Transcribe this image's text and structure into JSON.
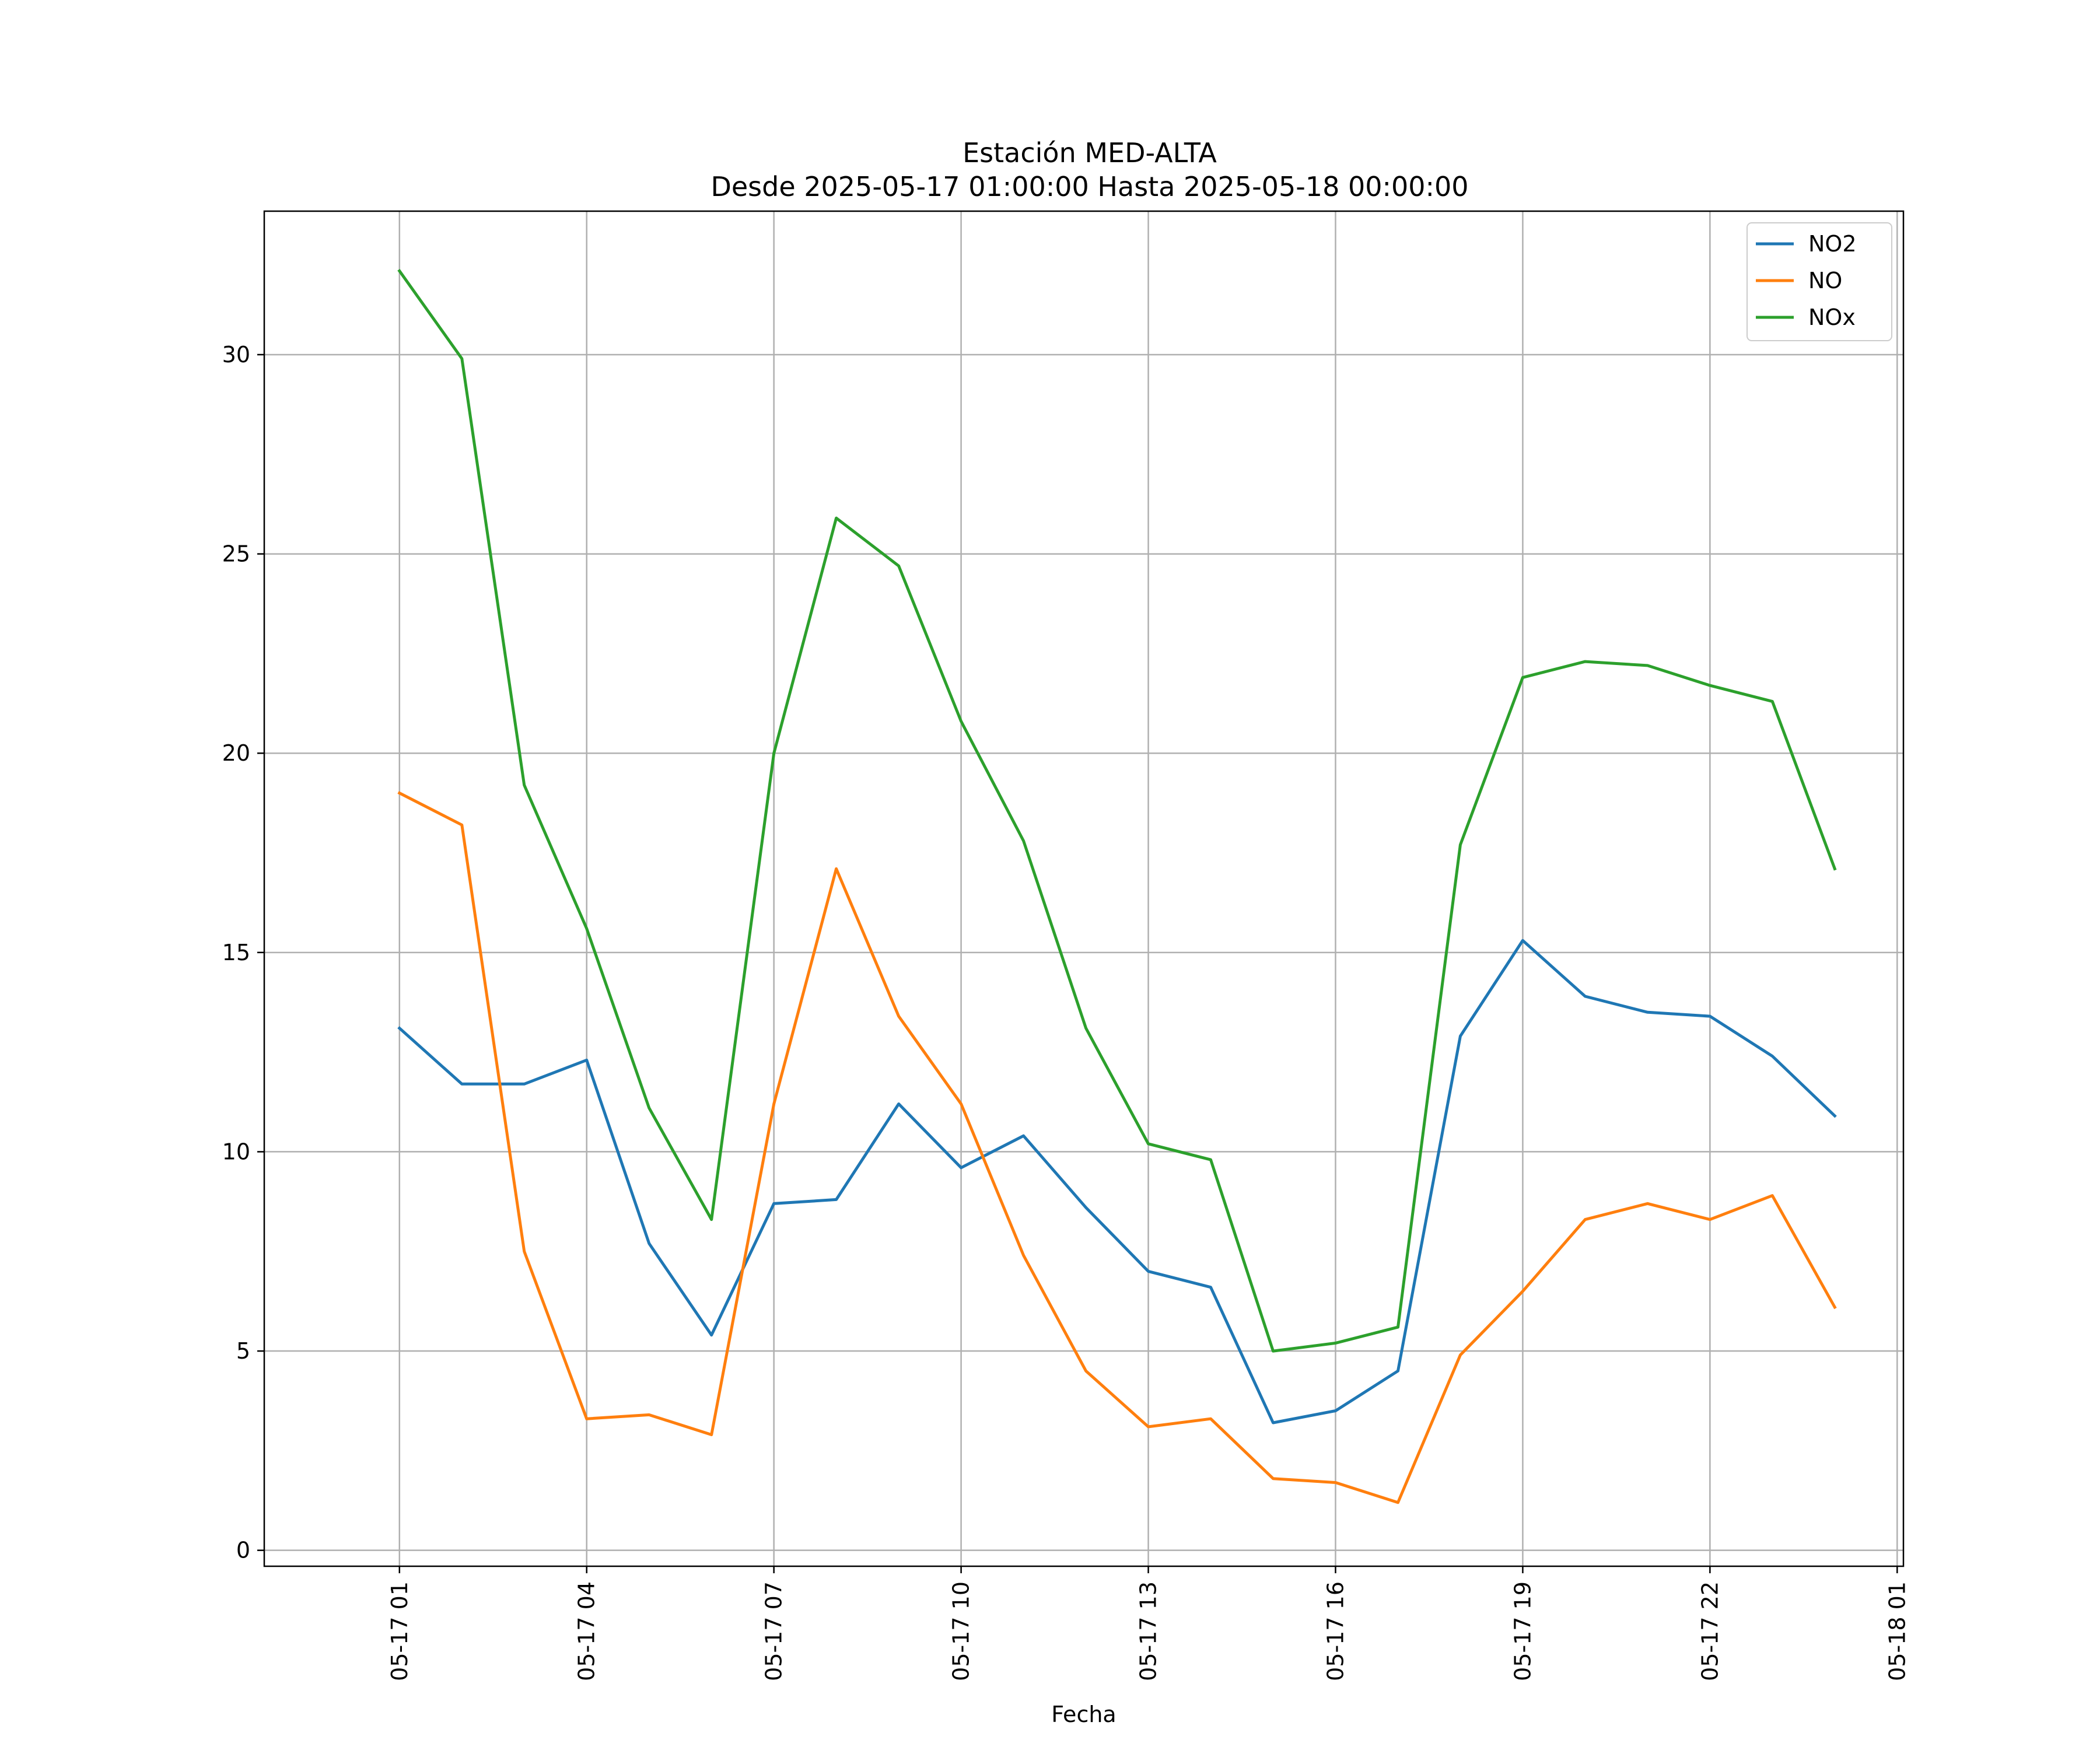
{
  "chart_data": {
    "type": "line",
    "title": "Estación MED-ALTA",
    "subtitle": "Desde 2025-05-17 01:00:00 Hasta 2025-05-18 00:00:00",
    "xlabel": "Fecha",
    "ylabel": "",
    "x": [
      "2025-05-17 01:00",
      "2025-05-17 02:00",
      "2025-05-17 03:00",
      "2025-05-17 04:00",
      "2025-05-17 05:00",
      "2025-05-17 06:00",
      "2025-05-17 07:00",
      "2025-05-17 08:00",
      "2025-05-17 09:00",
      "2025-05-17 10:00",
      "2025-05-17 11:00",
      "2025-05-17 12:00",
      "2025-05-17 13:00",
      "2025-05-17 14:00",
      "2025-05-17 15:00",
      "2025-05-17 16:00",
      "2025-05-17 17:00",
      "2025-05-17 18:00",
      "2025-05-17 19:00",
      "2025-05-17 20:00",
      "2025-05-17 21:00",
      "2025-05-17 22:00",
      "2025-05-17 23:00",
      "2025-05-18 00:00"
    ],
    "xlim": [
      "2025-05-16 22:50",
      "2025-05-18 01:06"
    ],
    "xticks": [
      "05-17 01",
      "05-17 04",
      "05-17 07",
      "05-17 10",
      "05-17 13",
      "05-17 16",
      "05-17 19",
      "05-17 22",
      "05-18 01"
    ],
    "ylim": [
      -0.4,
      33.6
    ],
    "yticks": [
      "0",
      "5",
      "10",
      "15",
      "20",
      "25",
      "30"
    ],
    "grid": true,
    "legend_position": "top-right",
    "series": [
      {
        "name": "NO2",
        "color": "#1f77b4",
        "values": [
          13.1,
          11.7,
          11.7,
          12.3,
          7.7,
          5.4,
          8.7,
          8.8,
          11.2,
          9.6,
          10.4,
          8.6,
          7.0,
          6.6,
          3.2,
          3.5,
          4.5,
          12.9,
          15.3,
          13.9,
          13.5,
          13.4,
          12.4,
          10.9
        ]
      },
      {
        "name": "NO",
        "color": "#ff7f0e",
        "values": [
          19.0,
          18.2,
          7.5,
          3.3,
          3.4,
          2.9,
          11.2,
          17.1,
          13.4,
          11.2,
          7.4,
          4.5,
          3.1,
          3.3,
          1.8,
          1.7,
          1.2,
          4.9,
          6.5,
          8.3,
          8.7,
          8.3,
          8.9,
          6.1
        ]
      },
      {
        "name": "NOx",
        "color": "#2ca02c",
        "values": [
          32.1,
          29.9,
          19.2,
          15.6,
          11.1,
          8.3,
          20.0,
          25.9,
          24.7,
          20.8,
          17.8,
          13.1,
          10.2,
          9.8,
          5.0,
          5.2,
          5.6,
          17.7,
          21.9,
          22.3,
          22.2,
          21.7,
          21.3,
          17.1
        ]
      }
    ]
  }
}
